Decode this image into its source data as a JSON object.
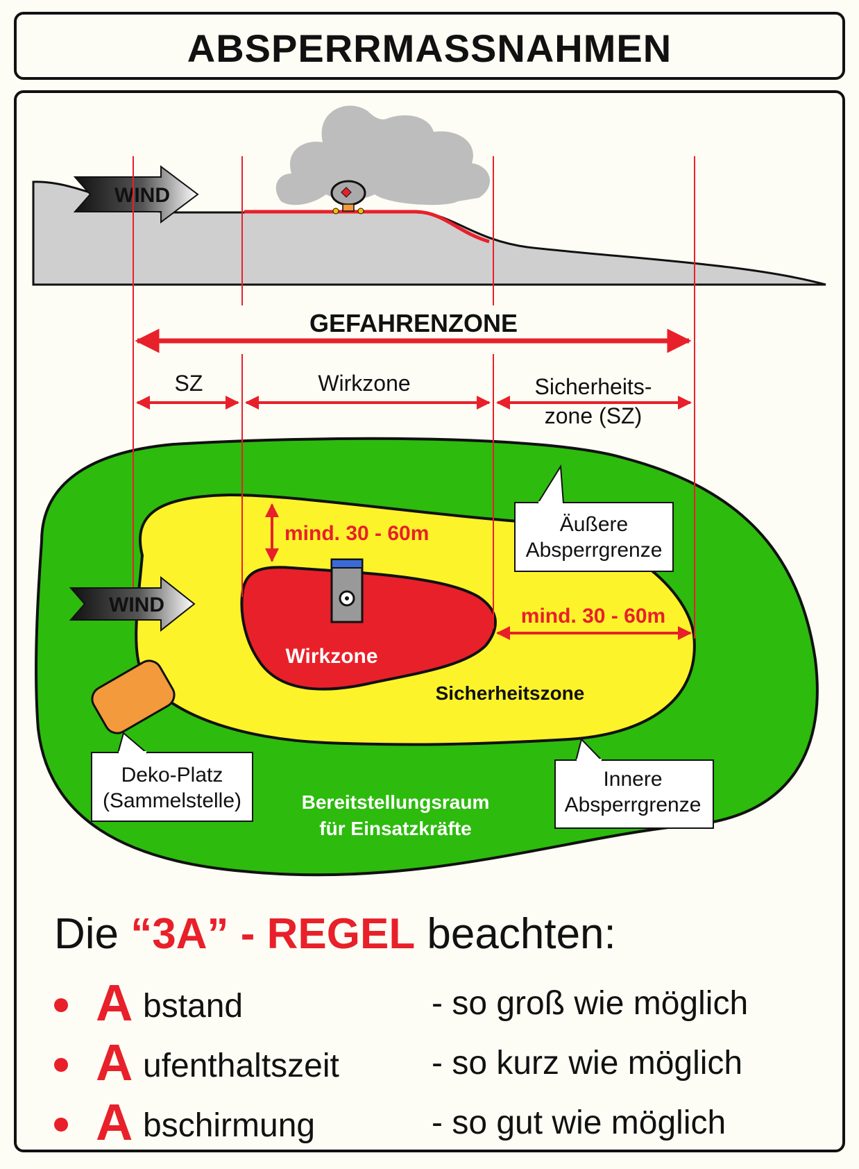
{
  "title": "ABSPERRMASSNAHMEN",
  "diagram": {
    "wind_label": "WIND",
    "gefahrenzone_label": "GEFAHRENZONE",
    "sz_left_label": "SZ",
    "wirkzone_top_label": "Wirkzone",
    "sicherheitszone_top_label_line1": "Sicherheits-",
    "sicherheitszone_top_label_line2": "zone (SZ)",
    "distance_vertical_label": "mind. 30 - 60m",
    "distance_horizontal_label": "mind. 30 - 60m",
    "wirkzone_label": "Wirkzone",
    "sicherheitszone_label": "Sicherheitszone",
    "aeussere_line1": "Äußere",
    "aeussere_line2": "Absperrgrenze",
    "innere_line1": "Innere",
    "innere_line2": "Absperrgrenze",
    "deko_line1": "Deko-Platz",
    "deko_line2": "(Sammelstelle)",
    "bereitstellung_line1": "Bereitstellungsraum",
    "bereitstellung_line2": "für Einsatzkräfte"
  },
  "rule": {
    "prefix": "Die ",
    "highlight": "“3A” - REGEL",
    "suffix": " beachten:",
    "items": [
      {
        "letter": "A",
        "rest": "bstand",
        "note": "- so groß wie möglich"
      },
      {
        "letter": "A",
        "rest": "ufenthaltszeit",
        "note": "- so kurz wie möglich"
      },
      {
        "letter": "A",
        "rest": "bschirmung",
        "note": "- so gut wie möglich"
      }
    ]
  },
  "colors": {
    "red": "#e8202a",
    "green": "#2dbb0e",
    "yellow": "#fdf32b",
    "orange": "#f39a3c",
    "grey": "#cfcfcf"
  }
}
